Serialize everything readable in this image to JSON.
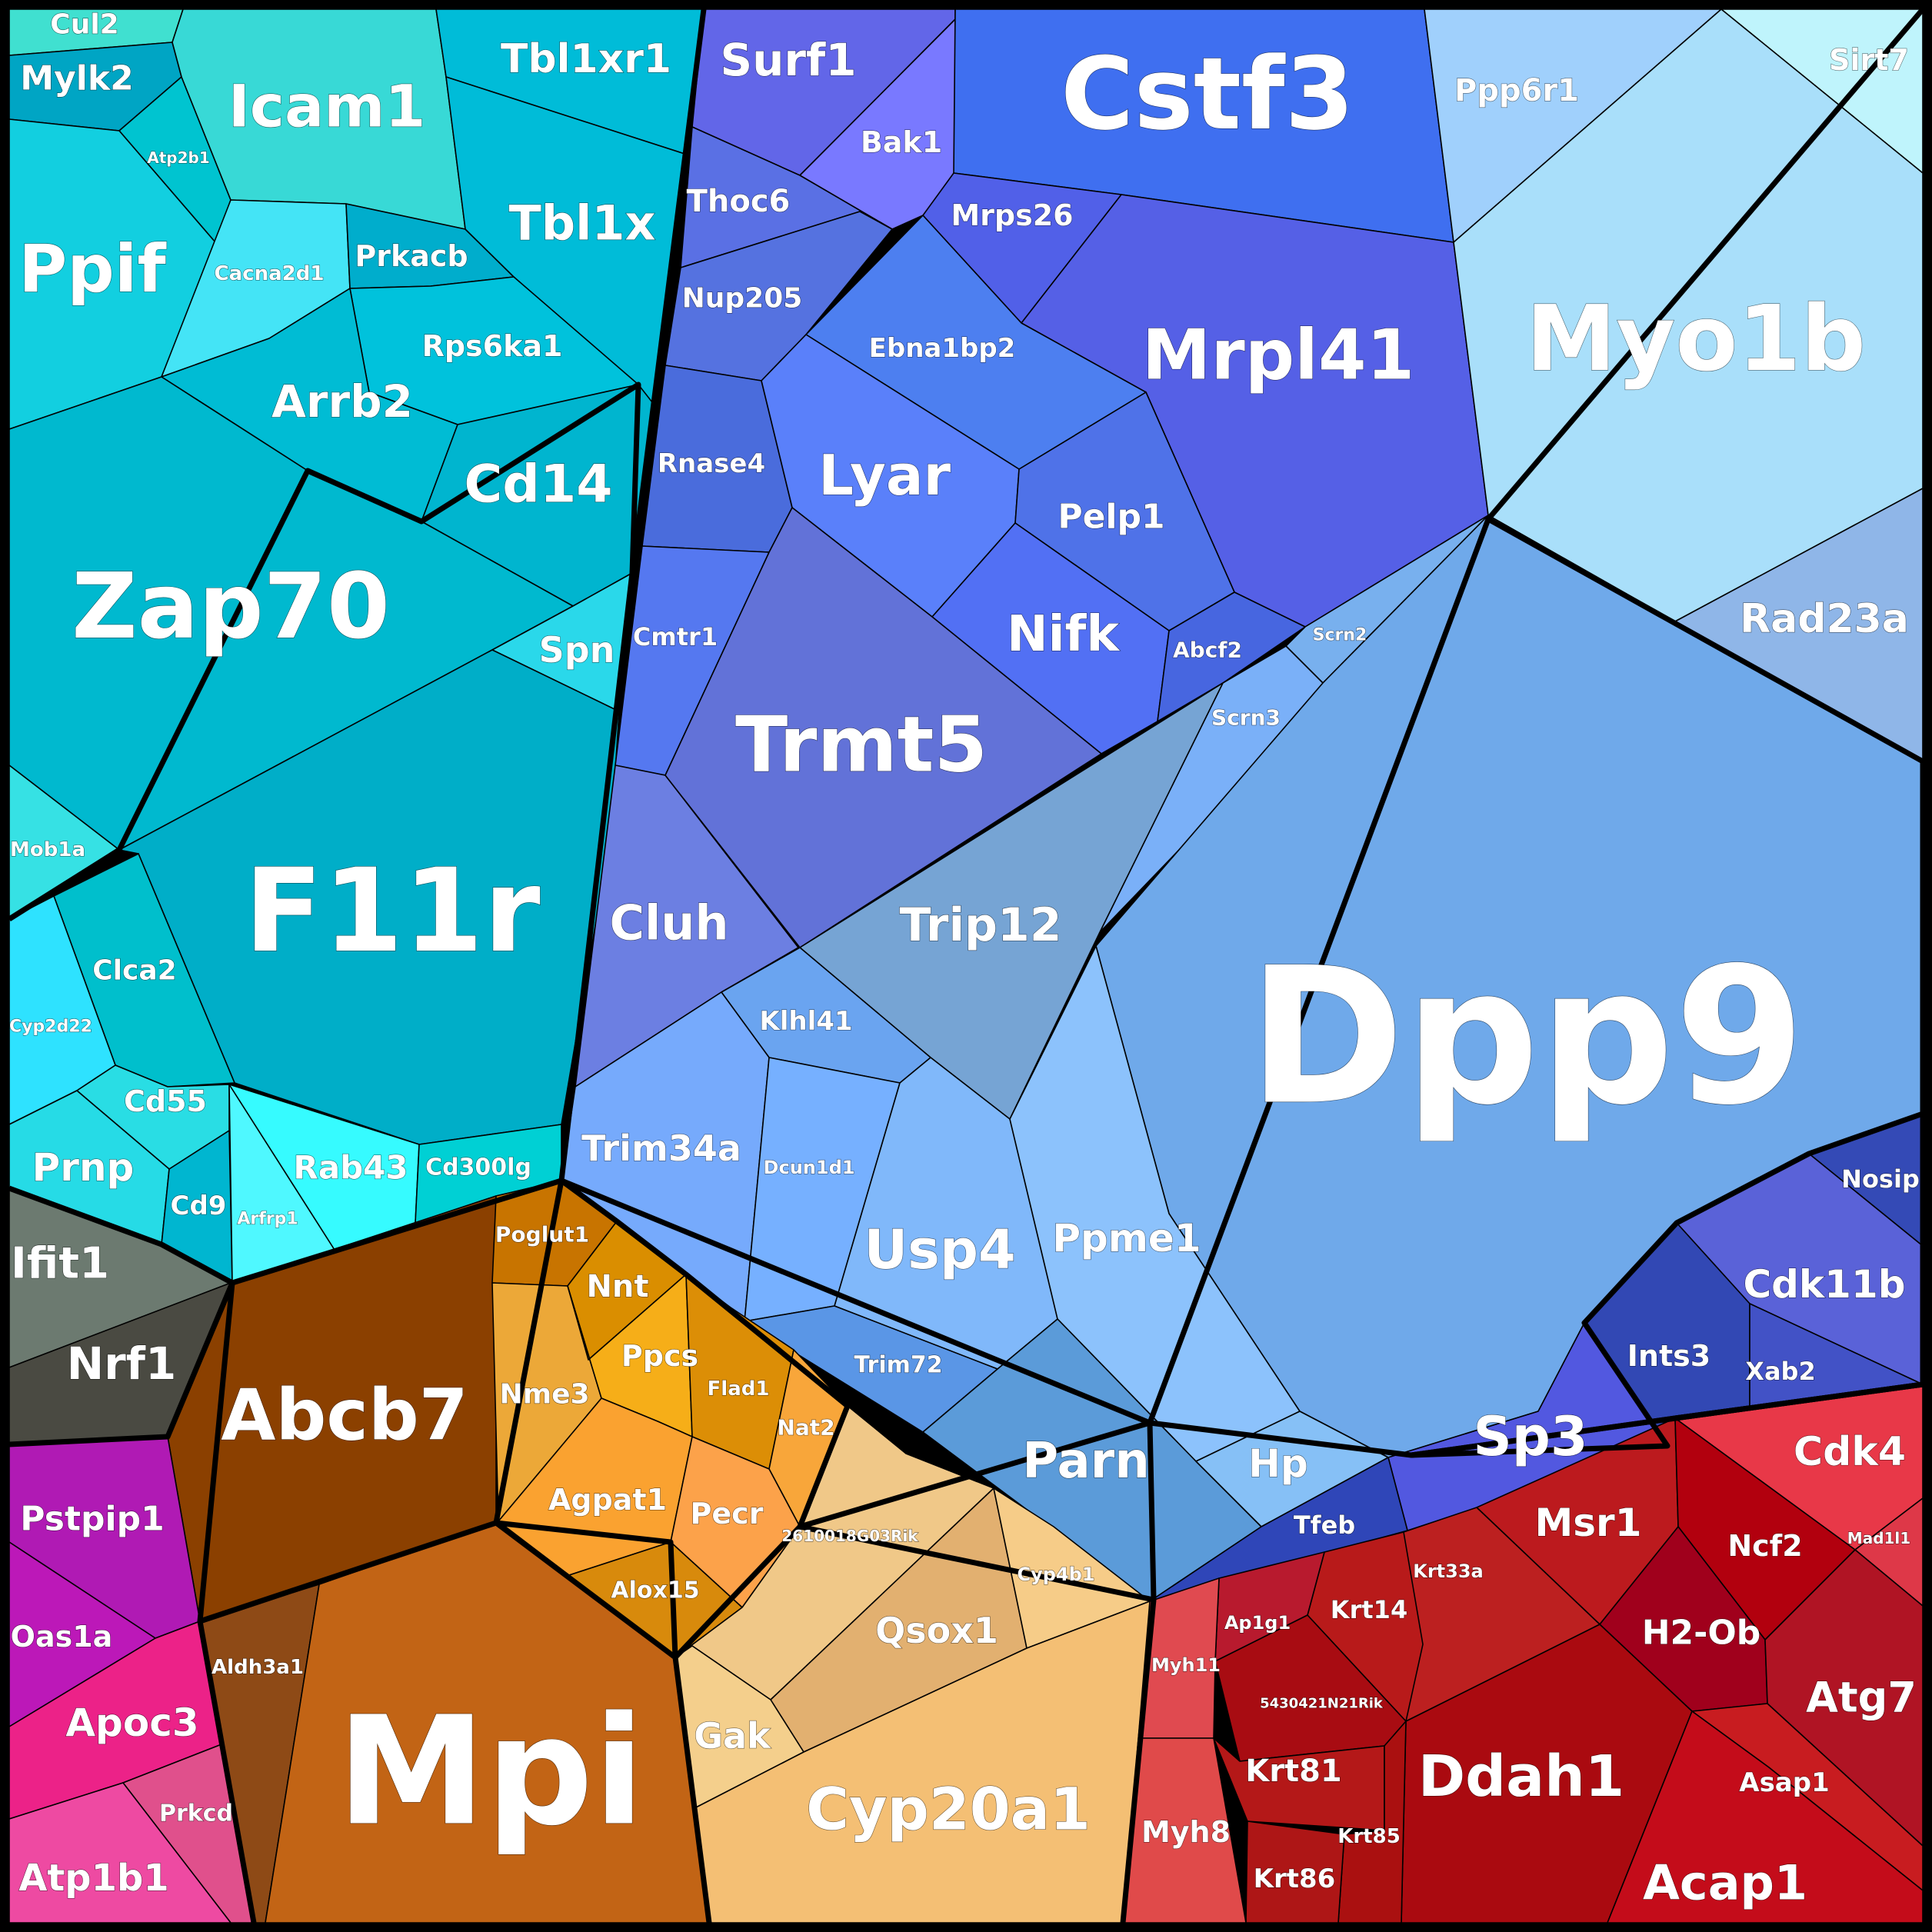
{
  "chart_data": {
    "type": "voronoi_treemap",
    "title": "",
    "groups": [
      {
        "name": "cyan",
        "color": "#00bcd4",
        "cells": [
          {
            "label": "Cul2",
            "color": "#40e0d0"
          },
          {
            "label": "Mylk2",
            "color": "#00a5c4"
          },
          {
            "label": "Atp2b1",
            "color": "#00c4d0"
          },
          {
            "label": "Icam1",
            "color": "#38d9d6"
          },
          {
            "label": "Tbl1xr1",
            "color": "#00bcd8"
          },
          {
            "label": "Ppif",
            "color": "#12cfe0"
          },
          {
            "label": "Cacna2d1",
            "color": "#44e4f6"
          },
          {
            "label": "Prkacb",
            "color": "#00adcc"
          },
          {
            "label": "Tbl1x",
            "color": "#00bcd8"
          },
          {
            "label": "Rps6ka1",
            "color": "#00c2dc"
          },
          {
            "label": "Arrb2",
            "color": "#00bcd4"
          },
          {
            "label": "Cd14",
            "color": "#00b5cf"
          },
          {
            "label": "Zap70",
            "color": "#00b9cf"
          },
          {
            "label": "Spn",
            "color": "#2ad8ea"
          },
          {
            "label": "Mob1a",
            "color": "#36e1e4"
          },
          {
            "label": "F11r",
            "color": "#00aec8"
          },
          {
            "label": "Clca2",
            "color": "#00bfcc"
          },
          {
            "label": "Cyp2d22",
            "color": "#2ee2ff"
          },
          {
            "label": "Cd55",
            "color": "#29dde4"
          },
          {
            "label": "Prnp",
            "color": "#26dbe6"
          },
          {
            "label": "Cd9",
            "color": "#00b6d0"
          },
          {
            "label": "Arfrp1",
            "color": "#4ff8ff"
          },
          {
            "label": "Rab43",
            "color": "#36fbff"
          },
          {
            "label": "Cd300lg",
            "color": "#00d0d4"
          }
        ]
      },
      {
        "name": "indigo",
        "color": "#5a6be0",
        "cells": [
          {
            "label": "Surf1",
            "color": "#6266e8"
          },
          {
            "label": "Bak1",
            "color": "#7979ff"
          },
          {
            "label": "Thoc6",
            "color": "#5a70e4"
          },
          {
            "label": "Nup205",
            "color": "#5572e0"
          },
          {
            "label": "Rnase4",
            "color": "#4a6cdc"
          },
          {
            "label": "Cmtr1",
            "color": "#5578f0"
          },
          {
            "label": "Cluh",
            "color": "#6c7fe2"
          },
          {
            "label": "Cstf3",
            "color": "#3f6ff0"
          },
          {
            "label": "Mrps26",
            "color": "#5160e8"
          },
          {
            "label": "Mrpl41",
            "color": "#5560e6"
          },
          {
            "label": "Ebna1bp2",
            "color": "#4d7ff0"
          },
          {
            "label": "Lyar",
            "color": "#5a80fa"
          },
          {
            "label": "Pelp1",
            "color": "#4f72e8"
          },
          {
            "label": "Nifk",
            "color": "#5270f4"
          },
          {
            "label": "Abcf2",
            "color": "#4766e0"
          },
          {
            "label": "Trmt5",
            "color": "#6272d8"
          }
        ]
      },
      {
        "name": "sky",
        "color": "#6fa9ea",
        "cells": [
          {
            "label": "Ppp6r1",
            "color": "#a0d0fc"
          },
          {
            "label": "Sirt7",
            "color": "#bff4fc"
          },
          {
            "label": "Myo1b",
            "color": "#a9dffa"
          },
          {
            "label": "Rad23a",
            "color": "#8fb6e8"
          },
          {
            "label": "Scrn2",
            "color": "#78b0ee"
          },
          {
            "label": "Scrn3",
            "color": "#7ab0f8"
          },
          {
            "label": "Trip12",
            "color": "#76a4d4"
          },
          {
            "label": "Dpp9",
            "color": "#6fa9ea"
          },
          {
            "label": "Klhl41",
            "color": "#6aa4f0"
          },
          {
            "label": "Trim34a",
            "color": "#76aafc"
          },
          {
            "label": "Dcun1d1",
            "color": "#76b0ff"
          },
          {
            "label": "Usp4",
            "color": "#80b8fa"
          },
          {
            "label": "Ppme1",
            "color": "#8cc2fc"
          },
          {
            "label": "Trim72",
            "color": "#5a96e6"
          },
          {
            "label": "Parn",
            "color": "#5b9bd9"
          },
          {
            "label": "Hp",
            "color": "#86c0f6"
          }
        ]
      },
      {
        "name": "navy",
        "color": "#3d4fc8",
        "cells": [
          {
            "label": "Nosip",
            "color": "#344ab6"
          },
          {
            "label": "Cdk11b",
            "color": "#5a62d8"
          },
          {
            "label": "Ints3",
            "color": "#3248b4"
          },
          {
            "label": "Xab2",
            "color": "#4252c6"
          },
          {
            "label": "Sp3",
            "color": "#5258e0"
          },
          {
            "label": "Tfeb",
            "color": "#2f46b8"
          }
        ]
      },
      {
        "name": "gray",
        "color": "#555555",
        "cells": [
          {
            "label": "Ifit1",
            "color": "#6c7a70"
          },
          {
            "label": "Nrf1",
            "color": "#4a4a42"
          }
        ]
      },
      {
        "name": "brown",
        "color": "#8b4513",
        "cells": [
          {
            "label": "Abcb7",
            "color": "#8b4000"
          },
          {
            "label": "Aldh3a1",
            "color": "#8e4a16"
          },
          {
            "label": "Mpi",
            "color": "#c26415"
          }
        ]
      },
      {
        "name": "orange",
        "color": "#f0a030",
        "cells": [
          {
            "label": "Poglut1",
            "color": "#c87400"
          },
          {
            "label": "Nnt",
            "color": "#da8e00"
          },
          {
            "label": "Nme3",
            "color": "#eca838"
          },
          {
            "label": "Ppcs",
            "color": "#f6ae18"
          },
          {
            "label": "Flad1",
            "color": "#dc8e06"
          },
          {
            "label": "Nat2",
            "color": "#f8a63a"
          },
          {
            "label": "Agpat1",
            "color": "#faa230"
          },
          {
            "label": "Pecr",
            "color": "#fca24a"
          },
          {
            "label": "Alox15",
            "color": "#d88a0c"
          }
        ]
      },
      {
        "name": "peach",
        "color": "#f4c070",
        "cells": [
          {
            "label": "2610018G03Rik",
            "color": "#f0c888"
          },
          {
            "label": "Qsox1",
            "color": "#e2b070"
          },
          {
            "label": "Cyp4b1",
            "color": "#f6cc88"
          },
          {
            "label": "Gak",
            "color": "#f4cf8c"
          },
          {
            "label": "Cyp20a1",
            "color": "#f4bf74"
          }
        ]
      },
      {
        "name": "magenta",
        "color": "#d020a0",
        "cells": [
          {
            "label": "Pstpip1",
            "color": "#b01ab4"
          },
          {
            "label": "Oas1a",
            "color": "#bc18b8"
          },
          {
            "label": "Apoc3",
            "color": "#ec2288"
          },
          {
            "label": "Prkcd",
            "color": "#e0508c"
          },
          {
            "label": "Atp1b1",
            "color": "#ee4aa2"
          }
        ]
      },
      {
        "name": "red",
        "color": "#c01818",
        "cells": [
          {
            "label": "Cdk4",
            "color": "#e83848"
          },
          {
            "label": "Mad1l1",
            "color": "#de3848"
          },
          {
            "label": "Msr1",
            "color": "#bc1a1e"
          },
          {
            "label": "Ncf2",
            "color": "#b2000e"
          },
          {
            "label": "Krt33a",
            "color": "#bc2020"
          },
          {
            "label": "Krt14",
            "color": "#b81a1a"
          },
          {
            "label": "Ap1g1",
            "color": "#b81a2e"
          },
          {
            "label": "H2-Ob",
            "color": "#a0001c"
          },
          {
            "label": "Atg7",
            "color": "#b01424"
          },
          {
            "label": "Myh11",
            "color": "#e04a50"
          },
          {
            "label": "5430421N21Rik",
            "color": "#a80c12"
          },
          {
            "label": "Ddah1",
            "color": "#aa0a10"
          },
          {
            "label": "Asap1",
            "color": "#c81c20"
          },
          {
            "label": "Myh8",
            "color": "#e04a4a"
          },
          {
            "label": "Krt81",
            "color": "#b41818"
          },
          {
            "label": "Krt85",
            "color": "#aa1010"
          },
          {
            "label": "Krt86",
            "color": "#ae1616"
          },
          {
            "label": "Acap1",
            "color": "#c40c1a"
          }
        ]
      }
    ]
  }
}
